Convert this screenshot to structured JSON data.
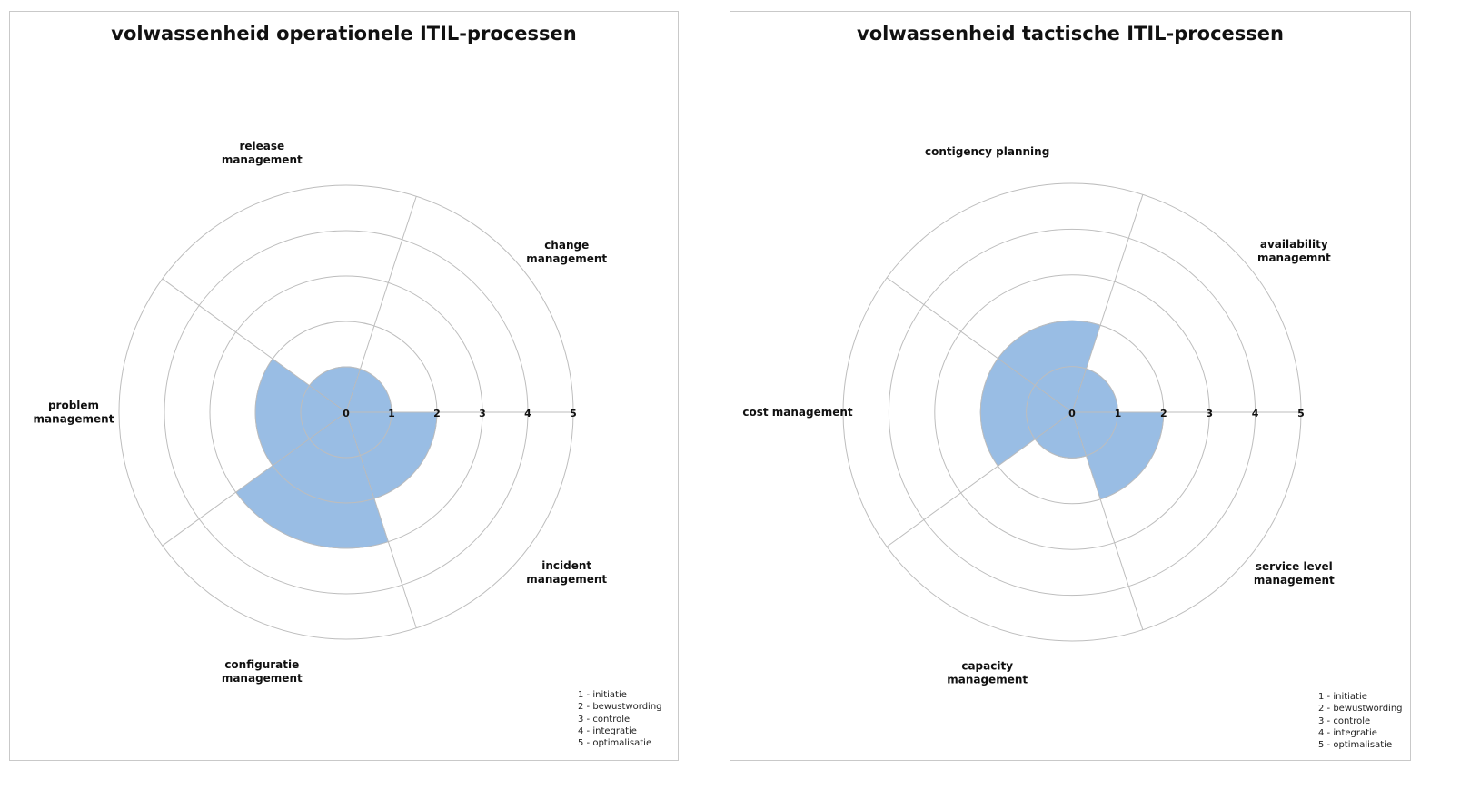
{
  "chart_data": [
    {
      "type": "radar",
      "title": "volwassenheid operationele ITIL-processen",
      "categories": [
        "incident management",
        "configuratie management",
        "problem management",
        "release management",
        "change management"
      ],
      "category_lines": [
        [
          "incident",
          "management"
        ],
        [
          "configuratie",
          "management"
        ],
        [
          "problem",
          "management"
        ],
        [
          "release",
          "management"
        ],
        [
          "change",
          "management"
        ]
      ],
      "values": [
        2,
        3,
        2,
        1,
        1
      ],
      "rlim": [
        0,
        5
      ],
      "ticks": [
        "0",
        "1",
        "2",
        "3",
        "4",
        "5"
      ],
      "color": "#99bde4",
      "legend_lines": [
        "1 - initiatie",
        "2 - bewustwording",
        "3 - controle",
        "4 - integratie",
        "5 - optimalisatie"
      ],
      "legend_position": "bottom-right"
    },
    {
      "type": "radar",
      "title": "volwassenheid tactische ITIL-processen",
      "categories": [
        "service level management",
        "capacity management",
        "cost management",
        "contigency planning",
        "availability managemnt"
      ],
      "category_lines": [
        [
          "service level",
          "management"
        ],
        [
          "capacity",
          "management"
        ],
        [
          "cost management"
        ],
        [
          "contigency planning"
        ],
        [
          "availability",
          "managemnt"
        ]
      ],
      "values": [
        2,
        1,
        2,
        2,
        1
      ],
      "rlim": [
        0,
        5
      ],
      "ticks": [
        "0",
        "1",
        "2",
        "3",
        "4",
        "5"
      ],
      "color": "#99bde4",
      "legend_lines": [
        "1 - initiatie",
        "2 - bewustwording",
        "3 - controle",
        "4 - integratie",
        "5 - optimalisatie"
      ],
      "legend_position": "bottom-right"
    }
  ]
}
